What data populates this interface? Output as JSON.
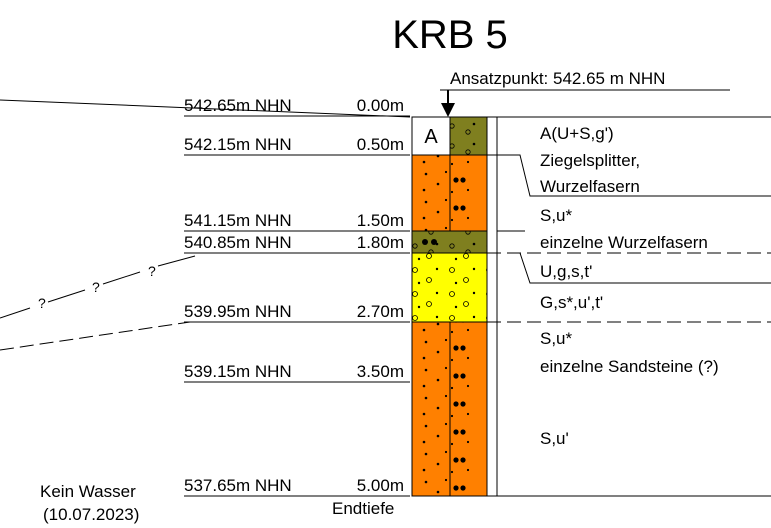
{
  "title": "KRB 5",
  "start_point": "Ansatzpunkt: 542.65 m NHN",
  "levels": [
    {
      "elevation": "542.65m NHN",
      "depth": "0.00m"
    },
    {
      "elevation": "542.15m NHN",
      "depth": "0.50m"
    },
    {
      "elevation": "541.15m NHN",
      "depth": "1.50m"
    },
    {
      "elevation": "540.85m NHN",
      "depth": "1.80m"
    },
    {
      "elevation": "539.95m NHN",
      "depth": "2.70m"
    },
    {
      "elevation": "539.15m NHN",
      "depth": "3.50m"
    },
    {
      "elevation": "537.65m NHN",
      "depth": "5.00m"
    }
  ],
  "layer_symbol": "A",
  "descriptions": [
    "A(U+S,g')",
    "Ziegelsplitter,",
    "Wurzelfasern",
    "S,u*",
    "einzelne Wurzelfasern",
    "U,g,s,t'",
    "G,s*,u',t'",
    "S,u*",
    "einzelne Sandsteine (?)",
    "S,u'"
  ],
  "question_marks": [
    "?",
    "?",
    "?"
  ],
  "water_note": "Kein Wasser",
  "water_date": "(10.07.2023)",
  "end_label": "Endtiefe"
}
